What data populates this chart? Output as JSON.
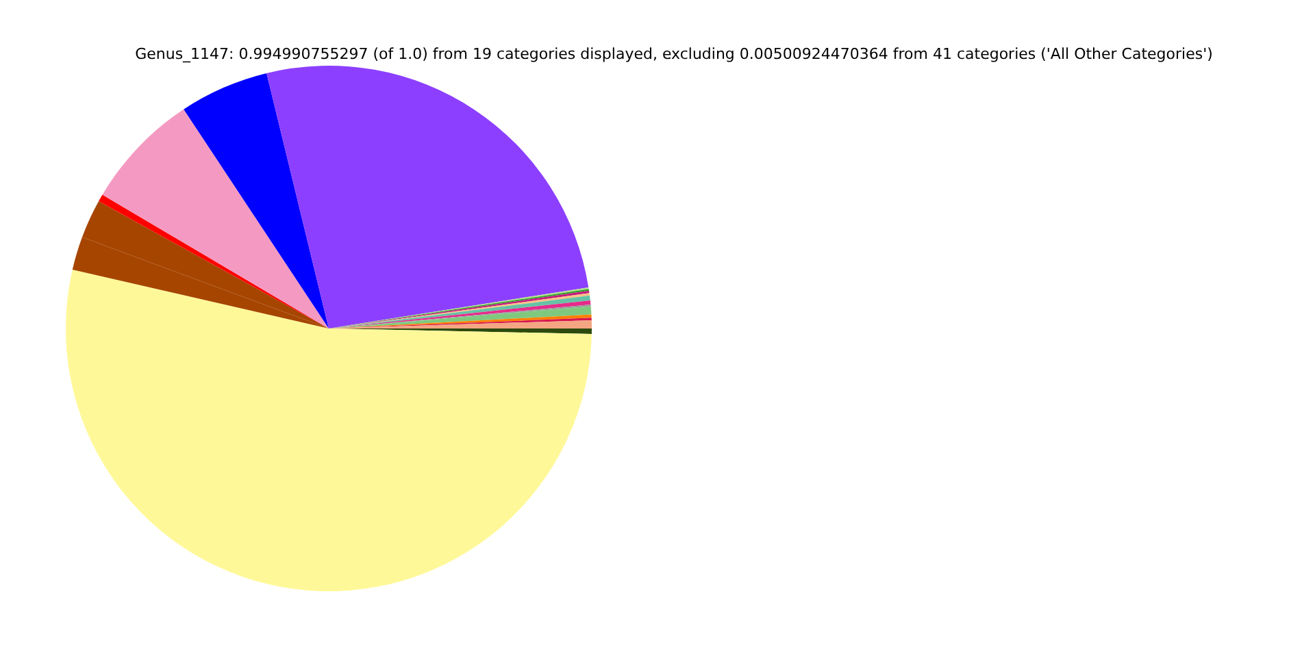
{
  "chart_data": {
    "type": "pie",
    "title": "Genus_1147: 0.994990755297 (of 1.0) from 19 categories displayed, excluding 0.00500924470364 from 41 categories ('All Other Categories')",
    "categories": [
      null,
      null,
      null,
      null,
      null,
      null,
      null,
      null,
      null,
      null,
      null,
      null,
      null,
      null,
      null,
      null,
      null,
      null,
      null
    ],
    "values": [
      0.33,
      53.27,
      2.05,
      2.4,
      0.45,
      7.2,
      5.5,
      26.3,
      0.1,
      0.1,
      0.15,
      0.15,
      0.3,
      0.25,
      0.1,
      0.5,
      0.2,
      0.15,
      0.5
    ],
    "colors": [
      "#2d4a0e",
      "#fff899",
      "#a64500",
      "#a64500",
      "#ff0000",
      "#f49ac2",
      "#0000ff",
      "#8c3fff",
      "#b2df8a",
      "#33a02c",
      "#c51b7d",
      "#fdc086",
      "#66c2a5",
      "#e7298a",
      "#999999",
      "#7fc97f",
      "#ff7f00",
      "#d6164d",
      "#f4a582"
    ],
    "legend": false
  }
}
